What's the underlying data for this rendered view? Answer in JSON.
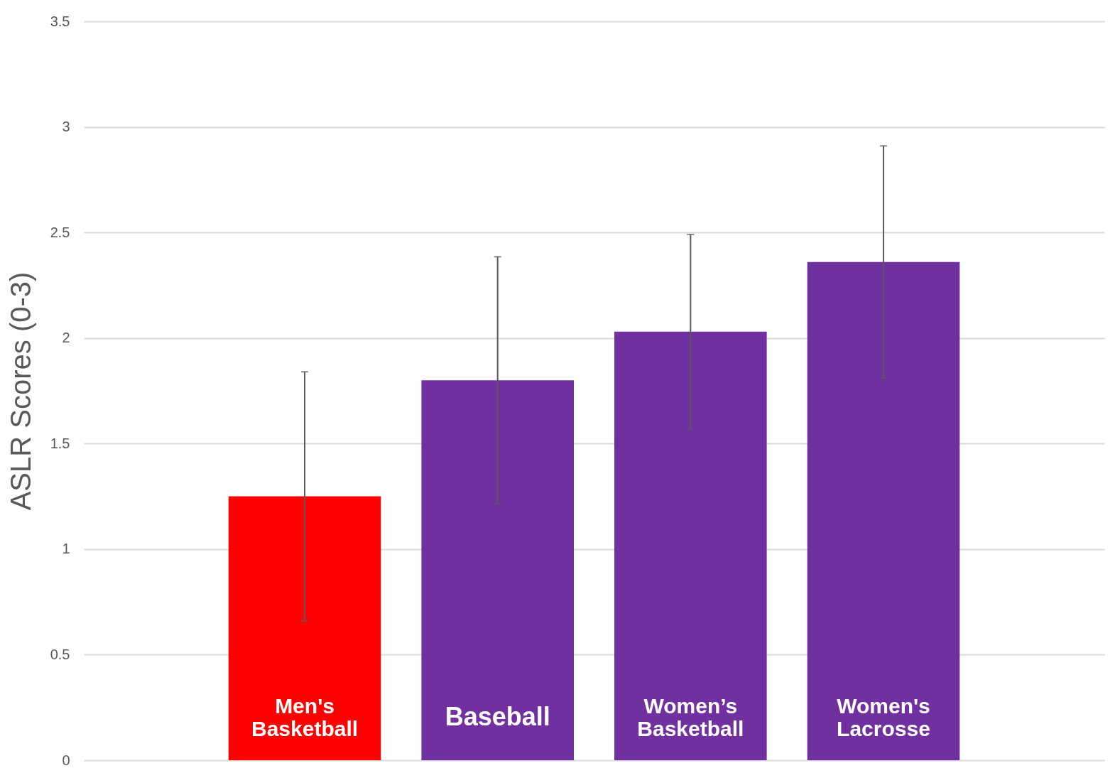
{
  "chart_data": {
    "type": "bar",
    "ylabel": "ASLR Scores (0-3)",
    "categories": [
      "Men's\nBasketball",
      "Baseball",
      "Women’s\nBasketball",
      "Women's\nLacrosse"
    ],
    "values": [
      1.25,
      1.8,
      2.03,
      2.36
    ],
    "colors": [
      "#ff0000",
      "#7030a0",
      "#7030a0",
      "#7030a0"
    ],
    "errors": [
      0.59,
      0.585,
      0.46,
      0.55
    ],
    "ylim": [
      0,
      3.5
    ],
    "yticks": [
      0,
      0.5,
      1,
      1.5,
      2,
      2.5,
      3,
      3.5
    ],
    "grid": "y"
  }
}
